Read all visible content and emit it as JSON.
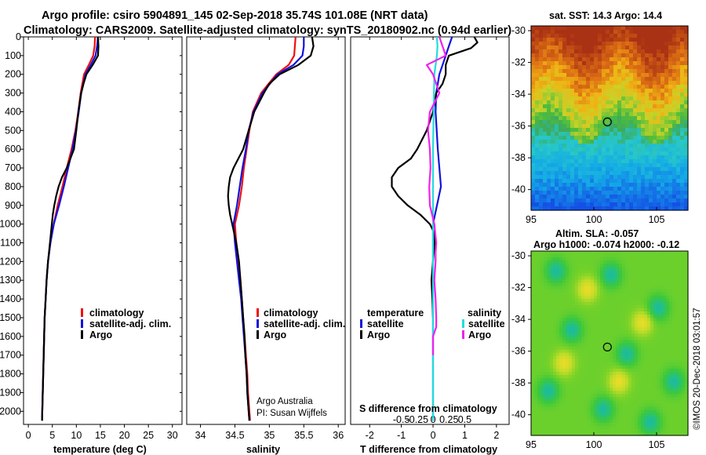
{
  "title_line1": "Argo profile: csiro 5904891_145 02-Sep-2018 35.74S 101.08E (NRT data)",
  "title_line2": "Climatology: CARS2009. Satellite-adjusted climatology: synTS_20180902.nc (0.94d earlier)",
  "colors": {
    "climatology": "#ee1111",
    "satellite": "#1111dd",
    "argo": "#000000",
    "sat_salinity": "#22dddd",
    "argo_salinity": "#ee22ee"
  },
  "chart_data": [
    {
      "type": "line",
      "xlabel": "temperature (deg C)",
      "ylabel": "",
      "xlim": [
        -1,
        32
      ],
      "ylim": [
        2070,
        0
      ],
      "xticks": [
        "0",
        "5",
        "10",
        "15",
        "20",
        "25",
        "30"
      ],
      "xtick_values": [
        0,
        5,
        10,
        15,
        20,
        25,
        30
      ],
      "yticks": [
        "0",
        "100",
        "200",
        "300",
        "400",
        "500",
        "600",
        "700",
        "800",
        "900",
        "1000",
        "1100",
        "1200",
        "1300",
        "1400",
        "1500",
        "1600",
        "1700",
        "1800",
        "1900",
        "2000"
      ],
      "legend": [
        "climatology",
        "satellite-adj. clim.",
        "Argo"
      ],
      "series": [
        {
          "name": "climatology",
          "color_key": "climatology",
          "depth": [
            0,
            50,
            100,
            150,
            200,
            300,
            400,
            500,
            600,
            700,
            800,
            900,
            1000,
            1100,
            1200,
            1300,
            1400,
            1500,
            1600,
            1700,
            1800,
            1900,
            2000,
            2050
          ],
          "values": [
            13.9,
            13.8,
            13.5,
            12.6,
            11.6,
            10.9,
            10.4,
            9.8,
            9.0,
            8.0,
            7.1,
            6.1,
            5.3,
            4.6,
            4.1,
            3.8,
            3.6,
            3.4,
            3.3,
            3.2,
            3.1,
            3.0,
            2.9,
            2.85
          ]
        },
        {
          "name": "satellite-adj. clim.",
          "color_key": "satellite",
          "depth": [
            0,
            50,
            100,
            150,
            200,
            300,
            400,
            500,
            600,
            700,
            800,
            900,
            1000,
            1100,
            1200,
            1300,
            1400,
            1500,
            1600,
            1700,
            1800,
            1900,
            2000,
            2050
          ],
          "values": [
            14.5,
            14.3,
            14.0,
            13.0,
            11.9,
            11.0,
            10.5,
            9.9,
            9.2,
            8.3,
            7.4,
            6.4,
            5.3,
            4.6,
            4.1,
            3.8,
            3.6,
            3.4,
            3.3,
            3.2,
            3.1,
            3.0,
            2.9,
            2.85
          ]
        },
        {
          "name": "Argo",
          "color_key": "argo",
          "depth": [
            0,
            50,
            100,
            150,
            200,
            250,
            300,
            400,
            500,
            600,
            700,
            750,
            800,
            850,
            900,
            950,
            1000,
            1100,
            1200,
            1300,
            1400,
            1500,
            1600,
            1700,
            1800,
            1900,
            2000,
            2050
          ],
          "values": [
            14.5,
            14.6,
            14.5,
            13.4,
            12.1,
            11.5,
            11.0,
            10.4,
            10.0,
            9.5,
            8.0,
            7.0,
            6.3,
            5.8,
            5.4,
            5.1,
            4.9,
            4.5,
            4.1,
            3.8,
            3.6,
            3.4,
            3.3,
            3.2,
            3.1,
            3.0,
            2.9,
            2.85
          ]
        }
      ]
    },
    {
      "type": "line",
      "xlabel": "salinity",
      "ylabel": "",
      "xlim": [
        33.8,
        36.1
      ],
      "ylim": [
        2070,
        0
      ],
      "xticks": [
        "34",
        "34.5",
        "35",
        "35.5",
        "36"
      ],
      "xtick_values": [
        34,
        34.5,
        35,
        35.5,
        36
      ],
      "legend": [
        "climatology",
        "satellite-adj. clim.",
        "Argo"
      ],
      "series": [
        {
          "name": "climatology",
          "color_key": "climatology",
          "depth": [
            0,
            50,
            100,
            150,
            200,
            300,
            400,
            500,
            600,
            700,
            800,
            900,
            1000,
            1100,
            1200,
            1300,
            1400,
            1500,
            1600,
            1700,
            1800,
            1900,
            2000,
            2050
          ],
          "values": [
            35.38,
            35.37,
            35.36,
            35.28,
            35.1,
            34.88,
            34.76,
            34.71,
            34.67,
            34.63,
            34.6,
            34.56,
            34.5,
            34.52,
            34.55,
            34.58,
            34.6,
            34.62,
            34.64,
            34.66,
            34.68,
            34.69,
            34.71,
            34.72
          ]
        },
        {
          "name": "satellite-adj. clim.",
          "color_key": "satellite",
          "depth": [
            0,
            50,
            100,
            150,
            200,
            300,
            400,
            500,
            600,
            700,
            800,
            900,
            1000,
            1100,
            1200,
            1300,
            1400,
            1500,
            1600,
            1700,
            1800,
            1900,
            2000,
            2050
          ],
          "values": [
            35.5,
            35.5,
            35.48,
            35.35,
            35.12,
            34.9,
            34.77,
            34.7,
            34.66,
            34.61,
            34.57,
            34.53,
            34.48,
            34.5,
            34.53,
            34.56,
            34.59,
            34.61,
            34.63,
            34.65,
            34.67,
            34.68,
            34.7,
            34.71
          ]
        },
        {
          "name": "Argo",
          "color_key": "argo",
          "depth": [
            0,
            50,
            100,
            150,
            200,
            250,
            300,
            400,
            500,
            600,
            700,
            750,
            800,
            850,
            900,
            950,
            1000,
            1100,
            1200,
            1300,
            1400,
            1500,
            1600,
            1700,
            1800,
            1900,
            2000,
            2050
          ],
          "values": [
            35.62,
            35.64,
            35.6,
            35.42,
            35.15,
            35.0,
            34.92,
            34.78,
            34.7,
            34.62,
            34.48,
            34.43,
            34.41,
            34.4,
            34.41,
            34.43,
            34.46,
            34.52,
            34.56,
            34.58,
            34.6,
            34.62,
            34.64,
            34.65,
            34.67,
            34.68,
            34.7,
            34.71
          ]
        }
      ]
    },
    {
      "type": "line",
      "xlabel": "T difference from climatology",
      "ylabel": "",
      "xlim": [
        -2.6,
        2.4
      ],
      "ylim": [
        2070,
        0
      ],
      "xticks": [
        "-2",
        "-1",
        "0",
        "1",
        "2"
      ],
      "xtick_values": [
        -2,
        -1,
        0,
        1,
        2
      ],
      "top_axis_label": "S difference from climatology",
      "top_ticks": [
        "-0.5",
        "-0.25",
        "0",
        "0.25",
        "0.5"
      ],
      "top_tick_values": [
        -0.5,
        -0.25,
        0,
        0.25,
        0.5
      ],
      "legend_temperature_title": "temperature",
      "legend_salinity_title": "salinity",
      "legend_items": [
        "satellite",
        "Argo"
      ],
      "series": [
        {
          "name": "temperature satellite",
          "color_key": "satellite",
          "depth": [
            0,
            50,
            100,
            150,
            200,
            300,
            400,
            600,
            800,
            1000,
            1200,
            1400,
            1600,
            1800,
            2000,
            2050
          ],
          "values": [
            0.6,
            0.5,
            0.4,
            0.3,
            0.2,
            0.1,
            0.08,
            0.15,
            0.25,
            0.0,
            0.0,
            0.0,
            0.0,
            0.0,
            0.0,
            0.0
          ]
        },
        {
          "name": "temperature Argo",
          "color_key": "argo",
          "depth": [
            0,
            30,
            60,
            100,
            150,
            200,
            250,
            300,
            400,
            500,
            600,
            650,
            700,
            750,
            800,
            850,
            900,
            950,
            1000,
            1050,
            1100,
            1200,
            1300,
            1400,
            1500
          ],
          "values": [
            1.3,
            1.4,
            1.2,
            0.5,
            0.4,
            0.4,
            0.3,
            0.1,
            0.0,
            -0.2,
            -0.5,
            -0.7,
            -1.1,
            -1.3,
            -1.3,
            -1.1,
            -0.8,
            -0.4,
            -0.1,
            0.05,
            0.05,
            0.0,
            -0.05,
            -0.02,
            0.0
          ]
        },
        {
          "name": "salinity satellite",
          "color_key": "sat_salinity",
          "depth": [
            0,
            50,
            100,
            200,
            400,
            600,
            800,
            1000,
            1200,
            1400,
            1600,
            1800,
            2000,
            2050
          ],
          "values": [
            0.06,
            0.07,
            0.06,
            0.02,
            0.01,
            0.0,
            0.0,
            0.0,
            0.0,
            0.0,
            0.0,
            0.0,
            0.0,
            0.0
          ]
        },
        {
          "name": "salinity Argo",
          "color_key": "argo_salinity",
          "depth": [
            0,
            100,
            150,
            200,
            300,
            400,
            500,
            600,
            700,
            800,
            900,
            1000,
            1100,
            1150,
            1200,
            1300,
            1400,
            1500,
            1550,
            1600,
            1700
          ],
          "values": [
            0.1,
            0.2,
            -0.1,
            0.0,
            0.1,
            -0.05,
            -0.08,
            -0.05,
            -0.04,
            -0.06,
            -0.05,
            0.02,
            0.05,
            0.04,
            0.04,
            0.02,
            0.04,
            0.05,
            0.05,
            0.0,
            0.0
          ]
        }
      ]
    },
    {
      "type": "heatmap",
      "title": "sat. SST: 14.3 Argo: 14.4",
      "xlim": [
        95,
        107.5
      ],
      "ylim": [
        -41.3,
        -29.7
      ],
      "xticks": [
        "95",
        "100",
        "105"
      ],
      "xtick_values": [
        95,
        100,
        105
      ],
      "yticks": [
        "-30",
        "-32",
        "-34",
        "-36",
        "-38",
        "-40"
      ],
      "ytick_values": [
        -30,
        -32,
        -34,
        -36,
        -38,
        -40
      ],
      "argo_position": {
        "lon": 101.08,
        "lat": -35.74
      }
    },
    {
      "type": "heatmap",
      "title_line1": "Altim. SLA: -0.057",
      "title_line2": "Argo h1000: -0.074 h2000: -0.12",
      "xlim": [
        95,
        107.5
      ],
      "ylim": [
        -41.3,
        -29.7
      ],
      "xticks": [
        "95",
        "100",
        "105"
      ],
      "xtick_values": [
        95,
        100,
        105
      ],
      "yticks": [
        "-30",
        "-32",
        "-34",
        "-36",
        "-38",
        "-40"
      ],
      "ytick_values": [
        -30,
        -32,
        -34,
        -36,
        -38,
        -40
      ],
      "argo_position": {
        "lon": 101.08,
        "lat": -35.74
      }
    }
  ],
  "credit_line1": "Argo Australia",
  "credit_line2": "PI: Susan Wijffels",
  "stamp": "©IMOS 20-Dec-2018 03:01:57"
}
